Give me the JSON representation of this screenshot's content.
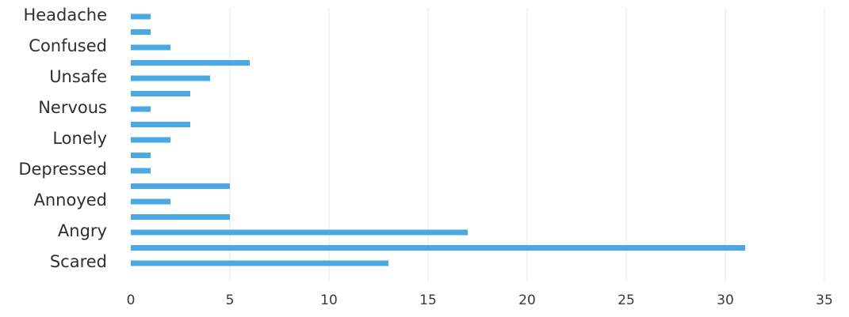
{
  "chart_data": {
    "type": "bar",
    "orientation": "horizontal",
    "categories": [
      "Headache",
      "",
      "Confused",
      "",
      "Unsafe",
      "",
      "Nervous",
      "",
      "Lonely",
      "",
      "Depressed",
      "",
      "Annoyed",
      "",
      "Angry",
      "",
      "Scared"
    ],
    "values": [
      1,
      1,
      2,
      6,
      4,
      3,
      1,
      3,
      2,
      1,
      1,
      5,
      2,
      5,
      17,
      31,
      13
    ],
    "x_ticks": [
      0,
      5,
      10,
      15,
      20,
      25,
      30,
      35
    ],
    "xlim": [
      0,
      35
    ],
    "grid": true,
    "bar_color": "#4aa9e2",
    "grid_color": "#e6e6e6"
  }
}
